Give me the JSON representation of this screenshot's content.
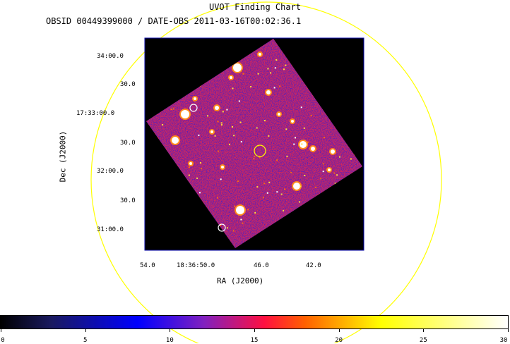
{
  "title": "UVOT Finding Chart",
  "subtitle": "OBSID 00449399000 / DATE-OBS 2011-03-16T00:02:36.1",
  "xlabel": "RA (J2000)",
  "ylabel": "Dec (J2000)",
  "dec_ticks": [
    "34:00.0",
    "30.0",
    "17:33:00.0",
    "30.0",
    "32:00.0",
    "30.0",
    "31:00.0"
  ],
  "ra_ticks": [
    "54.0",
    "18:36:50.0",
    "46.0",
    "42.0"
  ],
  "colorbar": {
    "ticks": [
      "0",
      "5",
      "10",
      "15",
      "20",
      "25",
      "30"
    ],
    "values": [
      0,
      5,
      10,
      15,
      20,
      25,
      30
    ],
    "range": [
      0,
      30
    ],
    "colors": [
      "#000000",
      "#1a1a60",
      "#0000ff",
      "#8020c0",
      "#ff1040",
      "#ff6000",
      "#ffff00",
      "#ffffff"
    ]
  },
  "colors": {
    "circle": "#ffff00",
    "frame": "#0000aa",
    "image_bg": "#000000",
    "source_marker": "#ffffff"
  }
}
